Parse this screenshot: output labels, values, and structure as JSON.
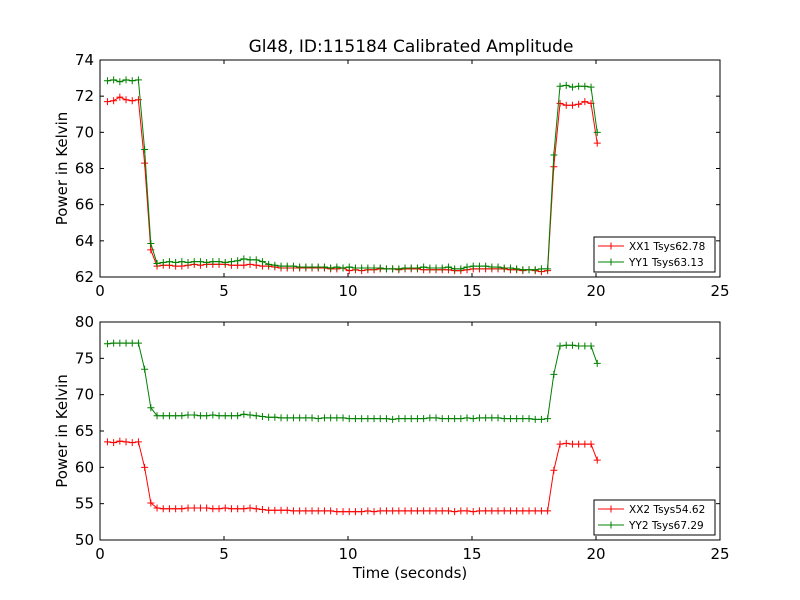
{
  "figure": {
    "title": "Gl48, ID:115184 Calibrated Amplitude",
    "xlabel": "Time (seconds)"
  },
  "chart_data": [
    {
      "type": "line",
      "title": "Gl48, ID:115184 Calibrated Amplitude",
      "xlabel": "",
      "ylabel": "Power in Kelvin",
      "xlim": [
        0,
        25
      ],
      "ylim": [
        62,
        74
      ],
      "xticks": [
        "0",
        "5",
        "10",
        "15",
        "20",
        "25"
      ],
      "yticks": [
        "62",
        "64",
        "66",
        "68",
        "70",
        "72",
        "74"
      ],
      "grid": false,
      "legend": "lower-right",
      "series": [
        {
          "name": "XX1 Tsys62.78",
          "color": "#ff0000",
          "marker": "+",
          "x": [
            0.3,
            0.55,
            0.8,
            1.05,
            1.3,
            1.55,
            1.8,
            2.05,
            2.3,
            2.55,
            2.8,
            3.05,
            3.3,
            3.55,
            3.8,
            4.05,
            4.3,
            4.55,
            4.8,
            5.05,
            5.3,
            5.55,
            5.8,
            6.05,
            6.3,
            6.55,
            6.8,
            7.05,
            7.3,
            7.55,
            7.8,
            8.05,
            8.3,
            8.55,
            8.8,
            9.05,
            9.3,
            9.55,
            9.8,
            10.05,
            10.3,
            10.55,
            10.8,
            11.05,
            11.3,
            11.55,
            11.8,
            12.05,
            12.3,
            12.55,
            12.8,
            13.05,
            13.3,
            13.55,
            13.8,
            14.05,
            14.3,
            14.55,
            14.8,
            15.05,
            15.3,
            15.55,
            15.8,
            16.05,
            16.3,
            16.55,
            16.8,
            17.05,
            17.3,
            17.55,
            17.8,
            18.05,
            18.3,
            18.55,
            18.8,
            19.05,
            19.3,
            19.55,
            19.8,
            20.05
          ],
          "y": [
            71.7,
            71.75,
            71.95,
            71.8,
            71.75,
            71.8,
            68.3,
            63.5,
            62.6,
            62.65,
            62.65,
            62.6,
            62.6,
            62.65,
            62.7,
            62.65,
            62.7,
            62.7,
            62.7,
            62.7,
            62.65,
            62.65,
            62.65,
            62.7,
            62.65,
            62.6,
            62.6,
            62.55,
            62.5,
            62.5,
            62.5,
            62.5,
            62.5,
            62.5,
            62.5,
            62.5,
            62.45,
            62.45,
            62.5,
            62.35,
            62.4,
            62.35,
            62.4,
            62.4,
            62.45,
            62.45,
            62.45,
            62.4,
            62.45,
            62.45,
            62.45,
            62.4,
            62.4,
            62.4,
            62.4,
            62.4,
            62.35,
            62.35,
            62.4,
            62.45,
            62.45,
            62.45,
            62.45,
            62.45,
            62.45,
            62.4,
            62.4,
            62.35,
            62.4,
            62.35,
            62.3,
            62.35,
            68.1,
            71.6,
            71.5,
            71.5,
            71.55,
            71.7,
            71.6,
            69.4
          ]
        },
        {
          "name": "YY1 Tsys63.13",
          "color": "#008000",
          "marker": "+",
          "x": [
            0.3,
            0.55,
            0.8,
            1.05,
            1.3,
            1.55,
            1.8,
            2.05,
            2.3,
            2.55,
            2.8,
            3.05,
            3.3,
            3.55,
            3.8,
            4.05,
            4.3,
            4.55,
            4.8,
            5.05,
            5.3,
            5.55,
            5.8,
            6.05,
            6.3,
            6.55,
            6.8,
            7.05,
            7.3,
            7.55,
            7.8,
            8.05,
            8.3,
            8.55,
            8.8,
            9.05,
            9.3,
            9.55,
            9.8,
            10.05,
            10.3,
            10.55,
            10.8,
            11.05,
            11.3,
            11.55,
            11.8,
            12.05,
            12.3,
            12.55,
            12.8,
            13.05,
            13.3,
            13.55,
            13.8,
            14.05,
            14.3,
            14.55,
            14.8,
            15.05,
            15.3,
            15.55,
            15.8,
            16.05,
            16.3,
            16.55,
            16.8,
            17.05,
            17.3,
            17.55,
            17.8,
            18.05,
            18.3,
            18.55,
            18.8,
            19.05,
            19.3,
            19.55,
            19.8,
            20.05
          ],
          "y": [
            72.85,
            72.9,
            72.8,
            72.9,
            72.85,
            72.9,
            69.05,
            63.85,
            62.75,
            62.8,
            62.85,
            62.8,
            62.85,
            62.8,
            62.85,
            62.85,
            62.8,
            62.85,
            62.85,
            62.8,
            62.85,
            62.9,
            63.0,
            62.95,
            62.95,
            62.85,
            62.7,
            62.65,
            62.6,
            62.6,
            62.6,
            62.55,
            62.55,
            62.55,
            62.55,
            62.55,
            62.5,
            62.55,
            62.5,
            62.55,
            62.5,
            62.5,
            62.5,
            62.5,
            62.5,
            62.45,
            62.45,
            62.45,
            62.5,
            62.5,
            62.5,
            62.55,
            62.5,
            62.5,
            62.5,
            62.55,
            62.45,
            62.45,
            62.55,
            62.6,
            62.6,
            62.6,
            62.55,
            62.55,
            62.5,
            62.5,
            62.45,
            62.4,
            62.4,
            62.4,
            62.45,
            62.45,
            68.75,
            72.55,
            72.6,
            72.5,
            72.55,
            72.55,
            72.5,
            70.0
          ]
        }
      ]
    },
    {
      "type": "line",
      "title": "",
      "xlabel": "Time (seconds)",
      "ylabel": "Power in Kelvin",
      "xlim": [
        0,
        25
      ],
      "ylim": [
        50,
        80
      ],
      "xticks": [
        "0",
        "5",
        "10",
        "15",
        "20",
        "25"
      ],
      "yticks": [
        "50",
        "55",
        "60",
        "65",
        "70",
        "75",
        "80"
      ],
      "grid": false,
      "legend": "lower-right",
      "series": [
        {
          "name": "XX2 Tsys54.62",
          "color": "#ff0000",
          "marker": "+",
          "x": [
            0.3,
            0.55,
            0.8,
            1.05,
            1.3,
            1.55,
            1.8,
            2.05,
            2.3,
            2.55,
            2.8,
            3.05,
            3.3,
            3.55,
            3.8,
            4.05,
            4.3,
            4.55,
            4.8,
            5.05,
            5.3,
            5.55,
            5.8,
            6.05,
            6.3,
            6.55,
            6.8,
            7.05,
            7.3,
            7.55,
            7.8,
            8.05,
            8.3,
            8.55,
            8.8,
            9.05,
            9.3,
            9.55,
            9.8,
            10.05,
            10.3,
            10.55,
            10.8,
            11.05,
            11.3,
            11.55,
            11.8,
            12.05,
            12.3,
            12.55,
            12.8,
            13.05,
            13.3,
            13.55,
            13.8,
            14.05,
            14.3,
            14.55,
            14.8,
            15.05,
            15.3,
            15.55,
            15.8,
            16.05,
            16.3,
            16.55,
            16.8,
            17.05,
            17.3,
            17.55,
            17.8,
            18.05,
            18.3,
            18.55,
            18.8,
            19.05,
            19.3,
            19.55,
            19.8,
            20.05
          ],
          "y": [
            63.5,
            63.4,
            63.6,
            63.5,
            63.4,
            63.5,
            60.0,
            55.1,
            54.4,
            54.3,
            54.3,
            54.3,
            54.3,
            54.4,
            54.4,
            54.4,
            54.4,
            54.3,
            54.3,
            54.4,
            54.3,
            54.3,
            54.3,
            54.4,
            54.3,
            54.2,
            54.1,
            54.1,
            54.1,
            54.1,
            54.0,
            54.0,
            54.0,
            54.0,
            54.0,
            54.0,
            54.0,
            53.9,
            53.9,
            53.9,
            53.9,
            53.9,
            54.0,
            53.9,
            54.0,
            54.0,
            54.0,
            54.0,
            54.0,
            54.0,
            54.0,
            54.0,
            54.0,
            54.0,
            54.0,
            54.0,
            53.9,
            54.0,
            54.0,
            53.9,
            54.0,
            54.0,
            54.0,
            54.0,
            54.0,
            54.0,
            54.0,
            54.0,
            54.0,
            54.0,
            54.0,
            54.0,
            59.6,
            63.2,
            63.3,
            63.2,
            63.2,
            63.2,
            63.2,
            61.0
          ]
        },
        {
          "name": "YY2 Tsys67.29",
          "color": "#008000",
          "marker": "+",
          "x": [
            0.3,
            0.55,
            0.8,
            1.05,
            1.3,
            1.55,
            1.8,
            2.05,
            2.3,
            2.55,
            2.8,
            3.05,
            3.3,
            3.55,
            3.8,
            4.05,
            4.3,
            4.55,
            4.8,
            5.05,
            5.3,
            5.55,
            5.8,
            6.05,
            6.3,
            6.55,
            6.8,
            7.05,
            7.3,
            7.55,
            7.8,
            8.05,
            8.3,
            8.55,
            8.8,
            9.05,
            9.3,
            9.55,
            9.8,
            10.05,
            10.3,
            10.55,
            10.8,
            11.05,
            11.3,
            11.55,
            11.8,
            12.05,
            12.3,
            12.55,
            12.8,
            13.05,
            13.3,
            13.55,
            13.8,
            14.05,
            14.3,
            14.55,
            14.8,
            15.05,
            15.3,
            15.55,
            15.8,
            16.05,
            16.3,
            16.55,
            16.8,
            17.05,
            17.3,
            17.55,
            17.8,
            18.05,
            18.3,
            18.55,
            18.8,
            19.05,
            19.3,
            19.55,
            19.8,
            20.05
          ],
          "y": [
            77.0,
            77.1,
            77.1,
            77.1,
            77.1,
            77.1,
            73.5,
            68.2,
            67.1,
            67.1,
            67.1,
            67.1,
            67.1,
            67.2,
            67.2,
            67.1,
            67.1,
            67.2,
            67.1,
            67.1,
            67.1,
            67.1,
            67.3,
            67.2,
            67.1,
            67.0,
            66.9,
            66.9,
            66.8,
            66.8,
            66.8,
            66.8,
            66.8,
            66.8,
            66.7,
            66.8,
            66.8,
            66.8,
            66.8,
            66.7,
            66.7,
            66.7,
            66.7,
            66.7,
            66.7,
            66.7,
            66.6,
            66.7,
            66.7,
            66.7,
            66.7,
            66.7,
            66.8,
            66.8,
            66.7,
            66.7,
            66.7,
            66.7,
            66.8,
            66.7,
            66.8,
            66.8,
            66.8,
            66.8,
            66.7,
            66.7,
            66.7,
            66.7,
            66.7,
            66.6,
            66.6,
            66.7,
            72.8,
            76.7,
            76.8,
            76.8,
            76.7,
            76.7,
            76.7,
            74.3
          ]
        }
      ]
    }
  ]
}
